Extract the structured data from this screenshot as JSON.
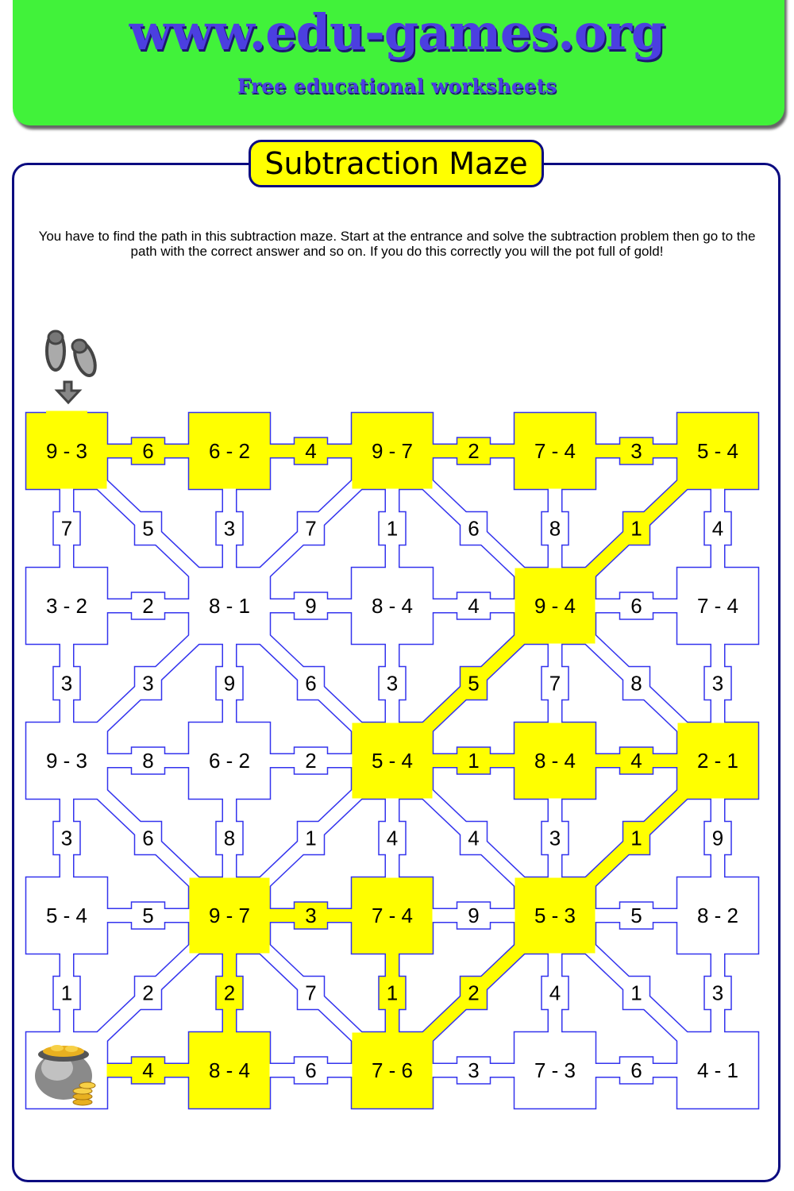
{
  "header": {
    "site": "www.edu-games.org",
    "tagline": "Free educational worksheets"
  },
  "title": "Subtraction Maze",
  "instructions": "You have to find the path in this subtraction maze. Start at the entrance and solve the subtraction problem then go to the path with the correct answer and so on. If you do this correctly you will the pot full of gold!",
  "colors": {
    "banner": "#41f23a",
    "highlight": "#ffff00",
    "maze_line": "#3333ee",
    "frame": "#0b0b80"
  },
  "icons": {
    "start": "footprints-arrow-down-icon",
    "goal": "pot-of-gold-icon"
  },
  "maze": {
    "rows": [
      {
        "boxes": [
          "9 - 3",
          "6 - 2",
          "9 - 7",
          "7 - 4",
          "5 - 4"
        ],
        "links": [
          "6",
          "4",
          "2",
          "3"
        ]
      },
      {
        "boxes": [
          "3 - 2",
          "8 - 1",
          "8 - 4",
          "9 - 4",
          "7 - 4"
        ],
        "links": [
          "2",
          "9",
          "4",
          "6"
        ]
      },
      {
        "boxes": [
          "9 - 3",
          "6 - 2",
          "5 - 4",
          "8 - 4",
          "2 - 1"
        ],
        "links": [
          "8",
          "2",
          "1",
          "4"
        ]
      },
      {
        "boxes": [
          "5 - 4",
          "9 - 7",
          "7 - 4",
          "5 - 3",
          "8 - 2"
        ],
        "links": [
          "5",
          "3",
          "9",
          "5"
        ]
      },
      {
        "boxes": [
          "",
          "8 - 4",
          "7 - 6",
          "7 - 3",
          "4 - 1"
        ],
        "links": [
          "4",
          "6",
          "3",
          "6"
        ]
      }
    ],
    "vlinks": [
      [
        "7",
        "5",
        "3",
        "7",
        "1",
        "6",
        "8",
        "1",
        "4"
      ],
      [
        "3",
        "3",
        "9",
        "6",
        "3",
        "5",
        "7",
        "8",
        "3"
      ],
      [
        "3",
        "6",
        "8",
        "1",
        "4",
        "4",
        "3",
        "1",
        "9"
      ],
      [
        "1",
        "2",
        "2",
        "7",
        "1",
        "2",
        "4",
        "1",
        "3"
      ]
    ],
    "highlight": {
      "boxes": [
        [
          0,
          0
        ],
        [
          0,
          1
        ],
        [
          0,
          2
        ],
        [
          0,
          3
        ],
        [
          0,
          4
        ],
        [
          1,
          3
        ],
        [
          2,
          2
        ],
        [
          2,
          3
        ],
        [
          2,
          4
        ],
        [
          3,
          1
        ],
        [
          3,
          2
        ],
        [
          3,
          3
        ],
        [
          4,
          1
        ],
        [
          4,
          2
        ]
      ],
      "links": [
        [
          0,
          0
        ],
        [
          0,
          1
        ],
        [
          0,
          2
        ],
        [
          0,
          3
        ],
        [
          2,
          2
        ],
        [
          2,
          3
        ],
        [
          3,
          1
        ],
        [
          4,
          0
        ]
      ],
      "vlinks": [
        [
          0,
          7
        ],
        [
          1,
          5
        ],
        [
          2,
          7
        ],
        [
          3,
          2
        ],
        [
          3,
          4
        ],
        [
          3,
          5
        ]
      ]
    }
  }
}
